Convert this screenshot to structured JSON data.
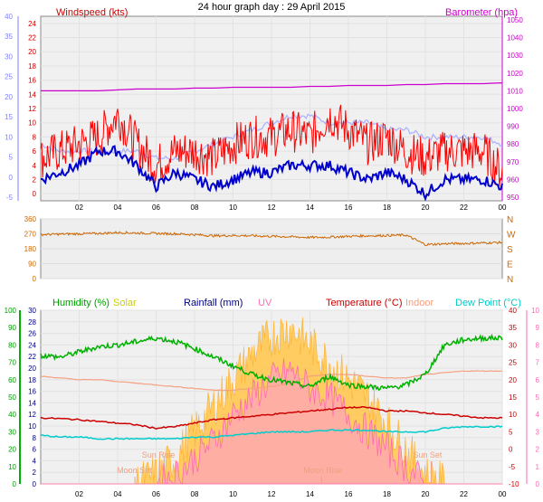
{
  "chart_data": [
    {
      "type": "line",
      "title": "24 hour graph day : 29 April 2015",
      "legend_left": "Windspeed (kts)",
      "legend_right": "Barometer (hpa)",
      "x_ticks": [
        "02",
        "04",
        "06",
        "08",
        "10",
        "12",
        "14",
        "16",
        "18",
        "20",
        "22",
        "00"
      ],
      "y_left_ticks_red": [
        "0",
        "2",
        "4",
        "6",
        "8",
        "10",
        "12",
        "14",
        "16",
        "18",
        "20",
        "22",
        "24"
      ],
      "y_left_ticks_blue": [
        "-5",
        "0",
        "5",
        "10",
        "15",
        "20",
        "25",
        "30",
        "35",
        "40"
      ],
      "y_right_ticks": [
        "950",
        "960",
        "970",
        "980",
        "990",
        "1000",
        "1010",
        "1020",
        "1030",
        "1040",
        "1050"
      ],
      "ylim_left": [
        -1,
        25
      ],
      "ylim_right": [
        948,
        1052
      ],
      "hours": [
        0,
        1,
        2,
        3,
        4,
        5,
        6,
        7,
        8,
        9,
        10,
        11,
        12,
        13,
        14,
        15,
        16,
        17,
        18,
        19,
        20,
        21,
        22,
        23,
        24
      ],
      "series": [
        {
          "name": "Barometer (hpa)",
          "axis": "right",
          "color": "#cc00cc",
          "values": [
            1010,
            1010,
            1010,
            1010,
            1010.5,
            1011,
            1011,
            1011,
            1011.5,
            1011.5,
            1012,
            1012,
            1012,
            1012,
            1012.5,
            1012.5,
            1013,
            1013,
            1013,
            1013.5,
            1013.5,
            1014,
            1014,
            1014,
            1014.5
          ]
        },
        {
          "name": "gust",
          "color": "#ff0000",
          "values": [
            5,
            6,
            7,
            8,
            11,
            7,
            4,
            6,
            6,
            5,
            7,
            8,
            8,
            9,
            8,
            11,
            9,
            7,
            8,
            6,
            5,
            6,
            6,
            6,
            3
          ]
        },
        {
          "name": "avg",
          "color": "#0000cc",
          "values": [
            2,
            3,
            4,
            6,
            6,
            4,
            1,
            3,
            2,
            1,
            2,
            3,
            3,
            4,
            4,
            4,
            3,
            2,
            3,
            2,
            0,
            2,
            2,
            2,
            1
          ]
        },
        {
          "name": "ref",
          "color": "#aab0ff",
          "values": [
            7,
            6,
            6,
            6,
            6,
            6,
            5,
            5,
            6,
            7,
            8,
            9,
            10,
            11,
            11,
            10,
            10,
            10,
            9,
            9,
            8,
            8,
            8,
            8,
            7
          ]
        }
      ]
    },
    {
      "type": "line",
      "title": "",
      "y_left_ticks": [
        "360",
        "270",
        "180",
        "90",
        "0"
      ],
      "y_right_ticks": [
        "N",
        "W",
        "S",
        "E",
        "N"
      ],
      "ylim": [
        0,
        360
      ],
      "series": [
        {
          "name": "direction",
          "color": "#cc6600",
          "values": [
            265,
            268,
            270,
            272,
            278,
            275,
            272,
            270,
            265,
            258,
            260,
            258,
            255,
            252,
            248,
            250,
            255,
            258,
            260,
            262,
            205,
            210,
            212,
            215,
            218
          ]
        }
      ]
    },
    {
      "type": "line",
      "title": "",
      "legends": [
        {
          "label": "Humidity (%)",
          "color": "#00a000"
        },
        {
          "label": "Solar",
          "color": "#cccc00"
        },
        {
          "label": "Rainfall (mm)",
          "color": "#000080"
        },
        {
          "label": "UV",
          "color": "#ff69b4"
        },
        {
          "label": "Temperature (°C)",
          "color": "#cc0000"
        },
        {
          "label": "Indoor",
          "color": "#f5a080"
        },
        {
          "label": "Dew Point (°C)",
          "color": "#00cccc"
        }
      ],
      "annotations": [
        "Moon Set",
        "Sun Rise",
        "Moon Rise",
        "Sun Set"
      ],
      "x_ticks": [
        "02",
        "04",
        "06",
        "08",
        "10",
        "12",
        "14",
        "16",
        "18",
        "20",
        "22",
        "00"
      ],
      "y_humidity_ticks": [
        "0",
        "10",
        "20",
        "30",
        "40",
        "50",
        "60",
        "70",
        "80",
        "90",
        "100"
      ],
      "y_left_ticks": [
        "0",
        "2",
        "4",
        "6",
        "8",
        "10",
        "12",
        "14",
        "16",
        "18",
        "20",
        "22",
        "24",
        "26",
        "28",
        "30"
      ],
      "y_right_ticks": [
        "-10",
        "-5",
        "0",
        "5",
        "10",
        "15",
        "20",
        "25",
        "30",
        "35",
        "40"
      ],
      "y_right2_ticks": [
        "0",
        "1",
        "2",
        "3",
        "4",
        "5",
        "6",
        "7",
        "8",
        "9",
        "10"
      ],
      "ylim_temp": [
        -10,
        40
      ],
      "ylim_humidity": [
        0,
        100
      ],
      "ylim_uv": [
        0,
        10
      ],
      "hours": [
        0,
        1,
        2,
        3,
        4,
        5,
        6,
        7,
        8,
        9,
        10,
        11,
        12,
        13,
        14,
        15,
        16,
        17,
        18,
        19,
        20,
        21,
        22,
        23,
        24
      ],
      "series": [
        {
          "name": "Humidity",
          "axis": "humidity",
          "color": "#00b000",
          "values": [
            74,
            73,
            76,
            79,
            80,
            82,
            84,
            82,
            78,
            73,
            68,
            63,
            60,
            58,
            56,
            62,
            57,
            56,
            55,
            57,
            63,
            80,
            83,
            84,
            84
          ]
        },
        {
          "name": "Temperature",
          "axis": "temp",
          "color": "#cc0000",
          "values": [
            9,
            8.8,
            8.5,
            8,
            7.5,
            7,
            6,
            6.5,
            7.5,
            8.5,
            9,
            9.5,
            10,
            10.5,
            11,
            11.5,
            12,
            12,
            11,
            11,
            10.5,
            10,
            9.5,
            9,
            9
          ]
        },
        {
          "name": "Indoor",
          "axis": "temp",
          "color": "#f5a080",
          "values": [
            21,
            20.5,
            20,
            20,
            19.5,
            19,
            18.5,
            18,
            17.5,
            17,
            17,
            17.5,
            18,
            19,
            21,
            21.5,
            21.5,
            21,
            20.5,
            20.5,
            21.5,
            22,
            22.5,
            22.5,
            22.5
          ]
        },
        {
          "name": "Dew Point",
          "axis": "temp",
          "color": "#00cccc",
          "values": [
            4,
            3.5,
            3.5,
            3,
            3,
            3,
            3,
            3,
            3.5,
            3.5,
            4,
            4.5,
            5,
            5,
            5,
            5.5,
            5.5,
            5.5,
            5,
            5,
            5,
            6,
            6.5,
            6.5,
            6.5
          ]
        },
        {
          "name": "Solar",
          "axis": "uv",
          "color": "#ffc040",
          "values": [
            0,
            0,
            0,
            0,
            0,
            0,
            0.5,
            1.5,
            3,
            4.5,
            6,
            7.5,
            8.5,
            9,
            8,
            7,
            6,
            5,
            3.5,
            2,
            0.5,
            0,
            0,
            0,
            0
          ]
        },
        {
          "name": "UV",
          "axis": "uv",
          "color": "#ff69b4",
          "values": [
            0,
            0,
            0,
            0,
            0,
            0,
            0,
            0.5,
            1.5,
            2.5,
            4,
            5,
            6,
            6.5,
            5.5,
            5,
            4,
            3,
            2,
            1,
            0,
            0,
            0,
            0,
            0
          ]
        }
      ],
      "event_hours": {
        "Moon Set": 4.9,
        "Sun Rise": 6.2,
        "Moon Rise": 14.6,
        "Sun Set": 20.3
      }
    }
  ]
}
